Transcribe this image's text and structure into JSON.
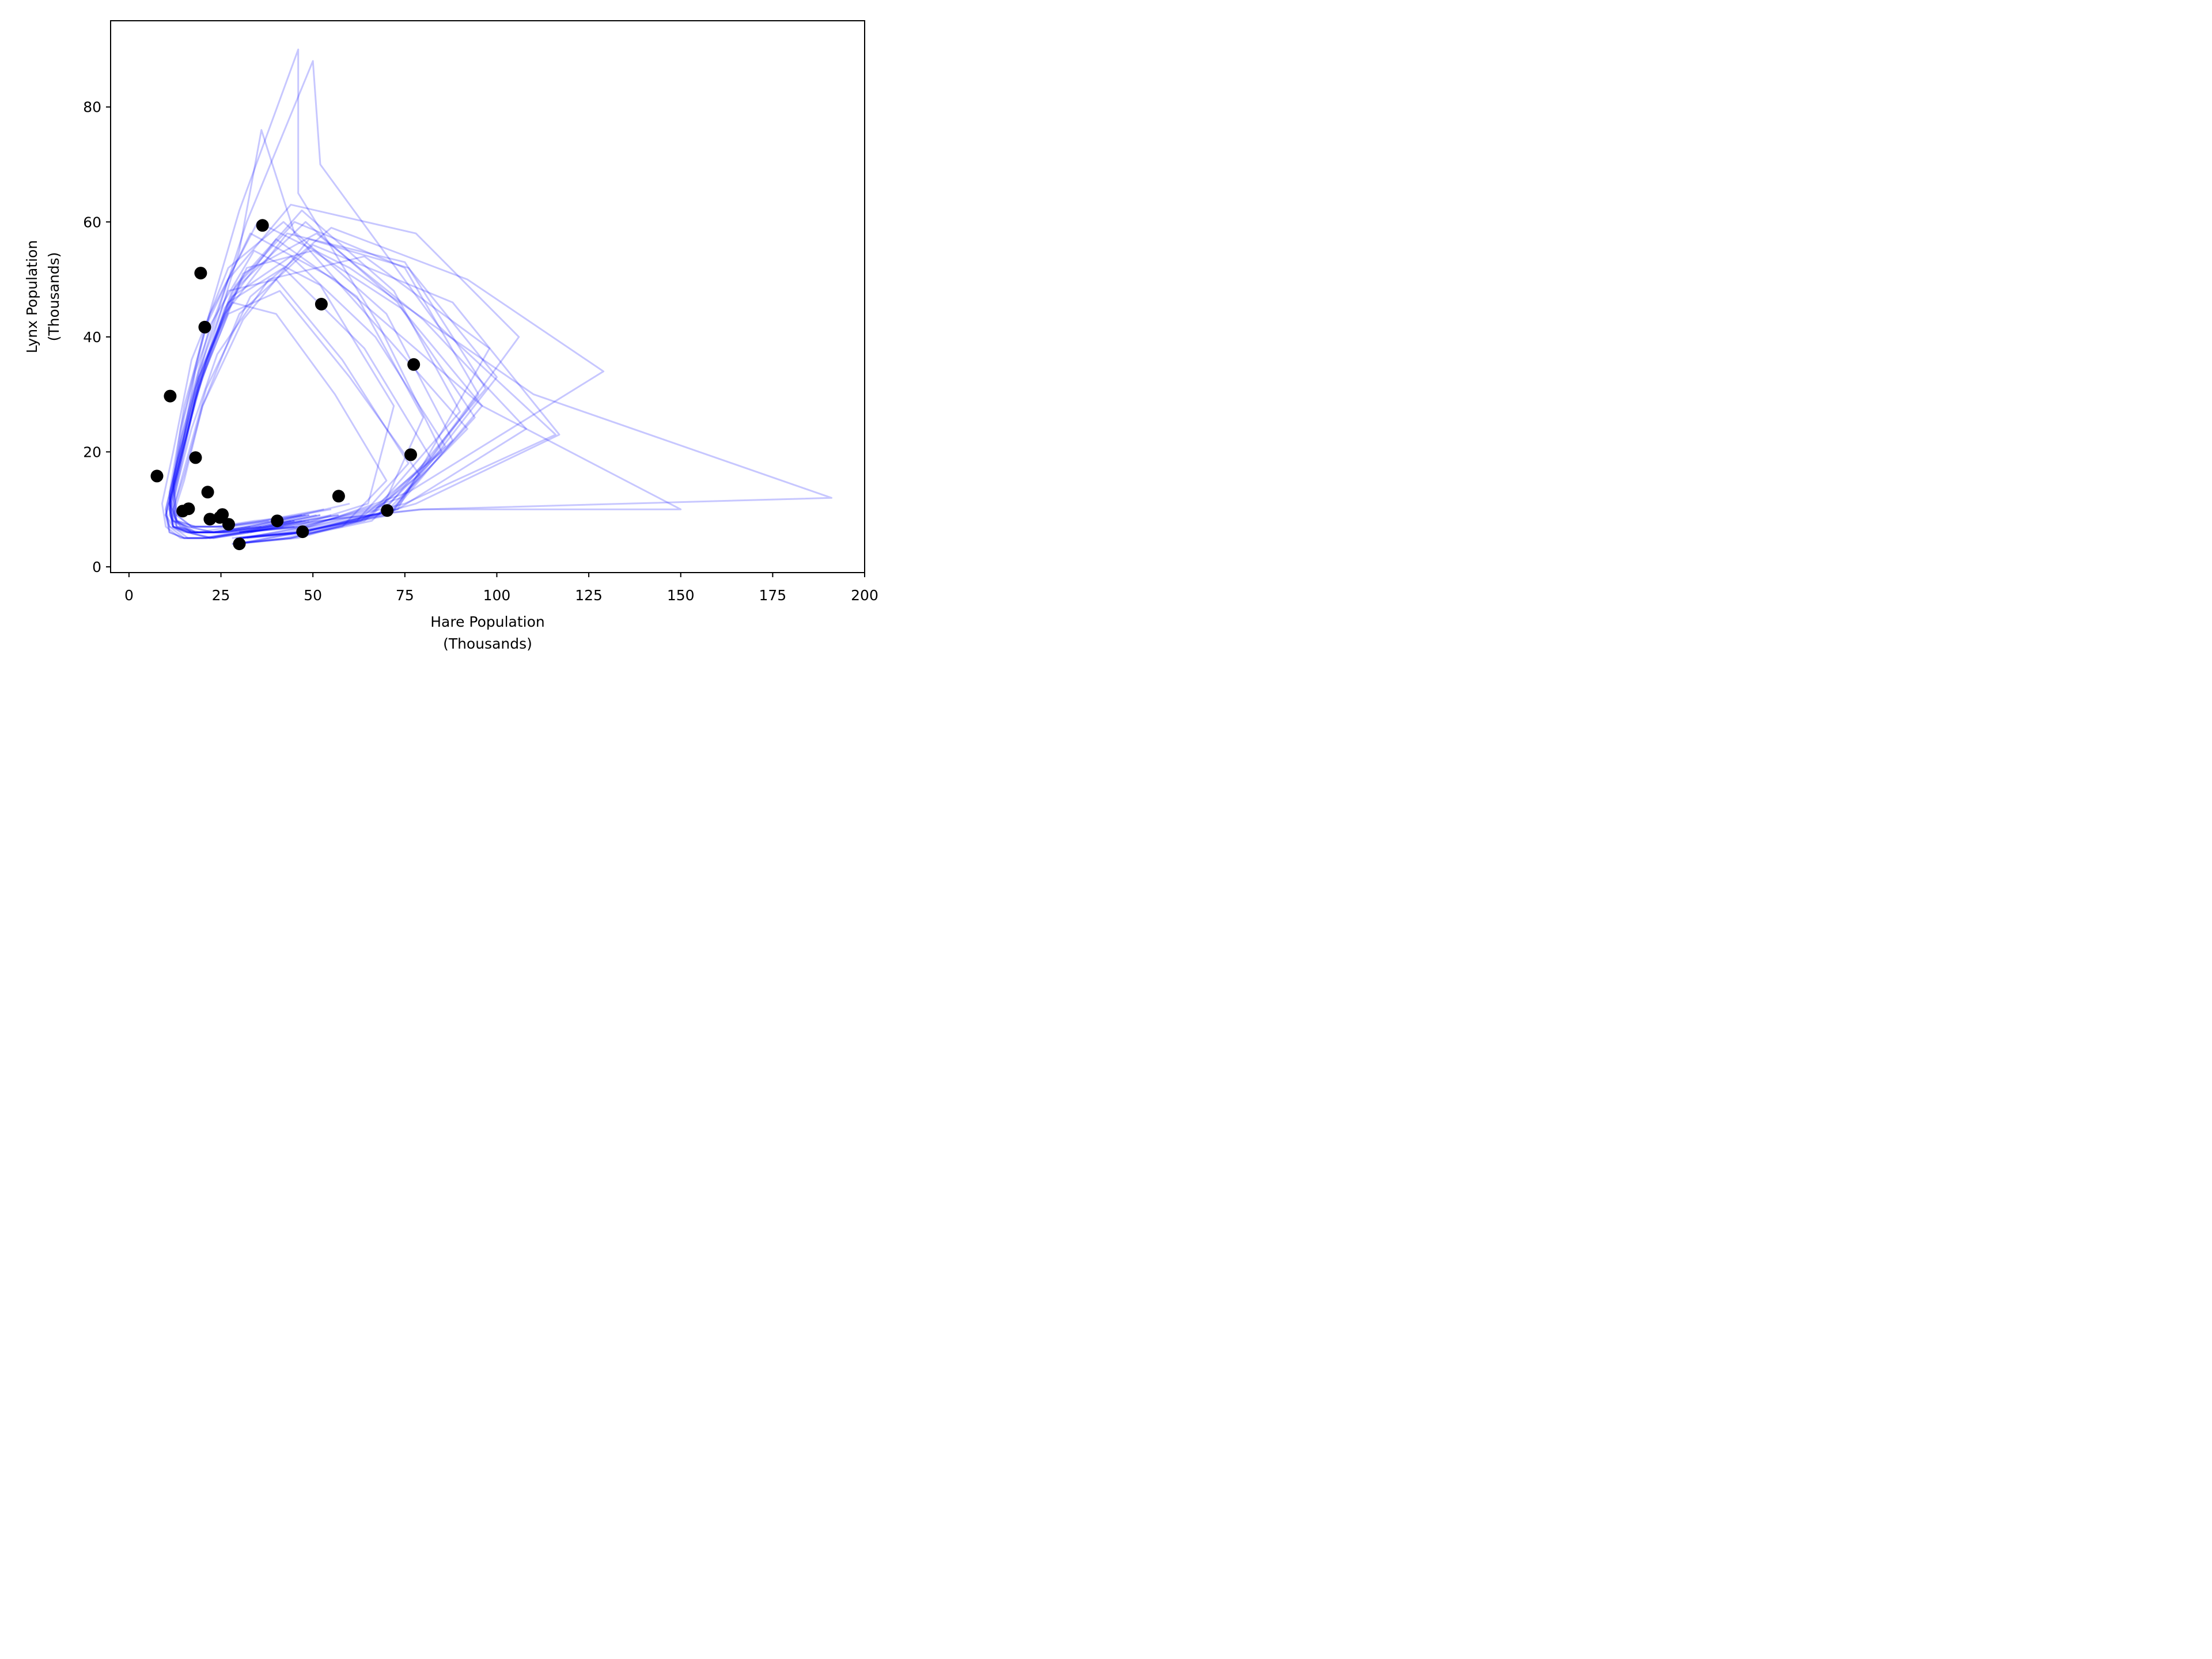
{
  "chart_data": {
    "type": "scatter",
    "xlabel": [
      "Hare Population",
      "(Thousands)"
    ],
    "ylabel": [
      "Lynx Population",
      "(Thousands)"
    ],
    "xlim": [
      -5,
      200
    ],
    "ylim": [
      -1,
      95
    ],
    "xticks": [
      0,
      25,
      50,
      75,
      100,
      125,
      150,
      175,
      200
    ],
    "yticks": [
      0,
      20,
      40,
      60,
      80
    ],
    "grid": false,
    "legend": "none",
    "colors": {
      "trajectories": "#0000ff",
      "observed": "#000000"
    },
    "trajectory_alpha": 0.22,
    "observed": {
      "x": [
        30.0,
        47.2,
        70.2,
        77.4,
        36.3,
        20.6,
        18.1,
        21.4,
        22.0,
        25.4,
        27.1,
        40.3,
        57.0,
        76.6,
        52.3,
        19.5,
        11.2,
        7.6,
        14.6,
        16.2,
        24.7
      ],
      "y": [
        4.0,
        6.1,
        9.8,
        35.2,
        59.4,
        41.7,
        19.0,
        13.0,
        8.3,
        9.1,
        7.4,
        8.0,
        12.3,
        19.5,
        45.7,
        51.1,
        29.7,
        15.8,
        9.7,
        10.1,
        8.6
      ]
    },
    "trajectories": [
      {
        "x": [
          30,
          47,
          72,
          95,
          75,
          45,
          28,
          19,
          14,
          11,
          12,
          16,
          23,
          33,
          48
        ],
        "y": [
          5,
          6,
          10,
          30,
          52,
          60,
          48,
          32,
          18,
          10,
          7,
          6,
          6,
          7,
          9
        ]
      },
      {
        "x": [
          29,
          46,
          68,
          80,
          62,
          40,
          26,
          18,
          13,
          10,
          11,
          15,
          21,
          30,
          44
        ],
        "y": [
          4,
          5,
          9,
          26,
          47,
          57,
          45,
          29,
          16,
          9,
          6,
          5,
          5,
          6,
          8
        ]
      },
      {
        "x": [
          31,
          48,
          74,
          106,
          78,
          44,
          27,
          18,
          14,
          11,
          13,
          18,
          26,
          37,
          55
        ],
        "y": [
          5,
          7,
          12,
          40,
          58,
          63,
          50,
          34,
          19,
          11,
          8,
          7,
          7,
          8,
          10
        ]
      },
      {
        "x": [
          30,
          45,
          65,
          72,
          52,
          34,
          22,
          16,
          12,
          10,
          12,
          17,
          25,
          36,
          52
        ],
        "y": [
          6,
          7,
          11,
          28,
          49,
          55,
          42,
          27,
          15,
          9,
          7,
          6,
          6,
          7,
          9
        ]
      },
      {
        "x": [
          28,
          44,
          66,
          88,
          70,
          42,
          27,
          17,
          12,
          9,
          10,
          14,
          20,
          29,
          42
        ],
        "y": [
          4,
          5,
          8,
          22,
          44,
          60,
          52,
          36,
          20,
          11,
          7,
          5,
          5,
          6,
          7
        ]
      },
      {
        "x": [
          32,
          50,
          78,
          117,
          88,
          50,
          30,
          20,
          15,
          12,
          14,
          19,
          28,
          40,
          60
        ],
        "y": [
          5,
          6,
          11,
          23,
          46,
          56,
          44,
          28,
          15,
          9,
          7,
          6,
          7,
          8,
          11
        ]
      },
      {
        "x": [
          30,
          46,
          69,
          92,
          70,
          45,
          36,
          30,
          22,
          15,
          11,
          12,
          16,
          23,
          33
        ],
        "y": [
          5,
          6,
          9,
          24,
          40,
          58,
          76,
          55,
          38,
          22,
          12,
          8,
          7,
          6,
          7
        ]
      },
      {
        "x": [
          29,
          47,
          73,
          98,
          64,
          38,
          24,
          17,
          13,
          11,
          13,
          18,
          26,
          38,
          57
        ],
        "y": [
          4,
          6,
          10,
          38,
          54,
          50,
          37,
          24,
          14,
          9,
          7,
          6,
          6,
          7,
          9
        ]
      },
      {
        "x": [
          31,
          49,
          76,
          129,
          92,
          55,
          33,
          21,
          15,
          12,
          13,
          17,
          24,
          35,
          51
        ],
        "y": [
          6,
          7,
          13,
          34,
          50,
          59,
          47,
          31,
          17,
          10,
          7,
          6,
          6,
          7,
          9
        ]
      },
      {
        "x": [
          30,
          45,
          62,
          76,
          58,
          40,
          27,
          19,
          14,
          11,
          12,
          16,
          22,
          31,
          45
        ],
        "y": [
          5,
          6,
          8,
          18,
          36,
          50,
          48,
          34,
          20,
          11,
          7,
          6,
          5,
          6,
          8
        ]
      },
      {
        "x": [
          28,
          43,
          64,
          85,
          68,
          46,
          46,
          30,
          20,
          14,
          11,
          12,
          17,
          25,
          36
        ],
        "y": [
          5,
          6,
          9,
          20,
          42,
          65,
          90,
          62,
          40,
          24,
          13,
          8,
          6,
          6,
          7
        ]
      },
      {
        "x": [
          33,
          52,
          80,
          191,
          110,
          60,
          35,
          22,
          15,
          12,
          13,
          17,
          24,
          34,
          49
        ],
        "y": [
          6,
          8,
          10,
          12,
          30,
          52,
          60,
          44,
          28,
          15,
          9,
          7,
          7,
          8,
          9
        ]
      },
      {
        "x": [
          30,
          47,
          71,
          96,
          74,
          50,
          32,
          21,
          15,
          12,
          13,
          18,
          26,
          38,
          55
        ],
        "y": [
          5,
          6,
          9,
          28,
          45,
          55,
          52,
          36,
          21,
          12,
          8,
          6,
          6,
          7,
          9
        ]
      },
      {
        "x": [
          29,
          44,
          63,
          79,
          60,
          41,
          27,
          18,
          13,
          10,
          11,
          15,
          21,
          31,
          45
        ],
        "y": [
          4,
          5,
          8,
          16,
          33,
          48,
          44,
          30,
          18,
          10,
          7,
          5,
          5,
          6,
          8
        ]
      },
      {
        "x": [
          31,
          49,
          75,
          116,
          84,
          52,
          50,
          32,
          21,
          14,
          11,
          13,
          18,
          26,
          38
        ],
        "y": [
          5,
          7,
          11,
          23,
          42,
          70,
          88,
          60,
          38,
          22,
          12,
          8,
          7,
          7,
          8
        ]
      },
      {
        "x": [
          30,
          46,
          67,
          90,
          72,
          47,
          29,
          19,
          14,
          11,
          12,
          16,
          23,
          33,
          49
        ],
        "y": [
          6,
          7,
          10,
          27,
          48,
          62,
          49,
          33,
          19,
          11,
          8,
          7,
          6,
          7,
          9
        ]
      },
      {
        "x": [
          28,
          42,
          58,
          70,
          56,
          40,
          28,
          19,
          14,
          11,
          12,
          16,
          22,
          32,
          47
        ],
        "y": [
          4,
          5,
          7,
          15,
          30,
          44,
          46,
          33,
          20,
          11,
          7,
          6,
          5,
          6,
          8
        ]
      },
      {
        "x": [
          32,
          51,
          79,
          150,
          96,
          56,
          33,
          21,
          15,
          12,
          13,
          17,
          25,
          36,
          53
        ],
        "y": [
          6,
          8,
          10,
          10,
          28,
          50,
          58,
          42,
          26,
          14,
          9,
          7,
          7,
          8,
          10
        ]
      },
      {
        "x": [
          30,
          47,
          72,
          100,
          76,
          49,
          31,
          20,
          15,
          12,
          13,
          18,
          27,
          39,
          57
        ],
        "y": [
          5,
          6,
          10,
          33,
          52,
          57,
          43,
          28,
          16,
          10,
          7,
          6,
          6,
          7,
          9
        ]
      },
      {
        "x": [
          29,
          45,
          66,
          86,
          67,
          44,
          28,
          19,
          14,
          11,
          12,
          16,
          23,
          33,
          48
        ],
        "y": [
          5,
          6,
          9,
          21,
          40,
          54,
          47,
          32,
          18,
          10,
          7,
          6,
          5,
          6,
          8
        ]
      },
      {
        "x": [
          31,
          48,
          73,
          108,
          80,
          51,
          31,
          20,
          15,
          12,
          13,
          17,
          25,
          36,
          52
        ],
        "y": [
          5,
          6,
          10,
          24,
          43,
          58,
          51,
          35,
          20,
          11,
          8,
          6,
          6,
          7,
          9
        ]
      },
      {
        "x": [
          30,
          46,
          70,
          94,
          73,
          48,
          30,
          20,
          14,
          11,
          12,
          16,
          23,
          33,
          49
        ],
        "y": [
          4,
          6,
          9,
          26,
          46,
          60,
          49,
          33,
          19,
          10,
          7,
          5,
          5,
          6,
          8
        ]
      },
      {
        "x": [
          30,
          47,
          71,
          97,
          75,
          43,
          26,
          18,
          13,
          10,
          11,
          15,
          22,
          32,
          47
        ],
        "y": [
          6,
          7,
          11,
          31,
          53,
          58,
          44,
          29,
          16,
          9,
          7,
          6,
          6,
          7,
          9
        ]
      },
      {
        "x": [
          29,
          44,
          64,
          82,
          64,
          42,
          27,
          18,
          13,
          10,
          11,
          15,
          21,
          31,
          45
        ],
        "y": [
          4,
          5,
          8,
          19,
          38,
          52,
          46,
          31,
          18,
          10,
          6,
          5,
          5,
          6,
          7
        ]
      }
    ]
  }
}
